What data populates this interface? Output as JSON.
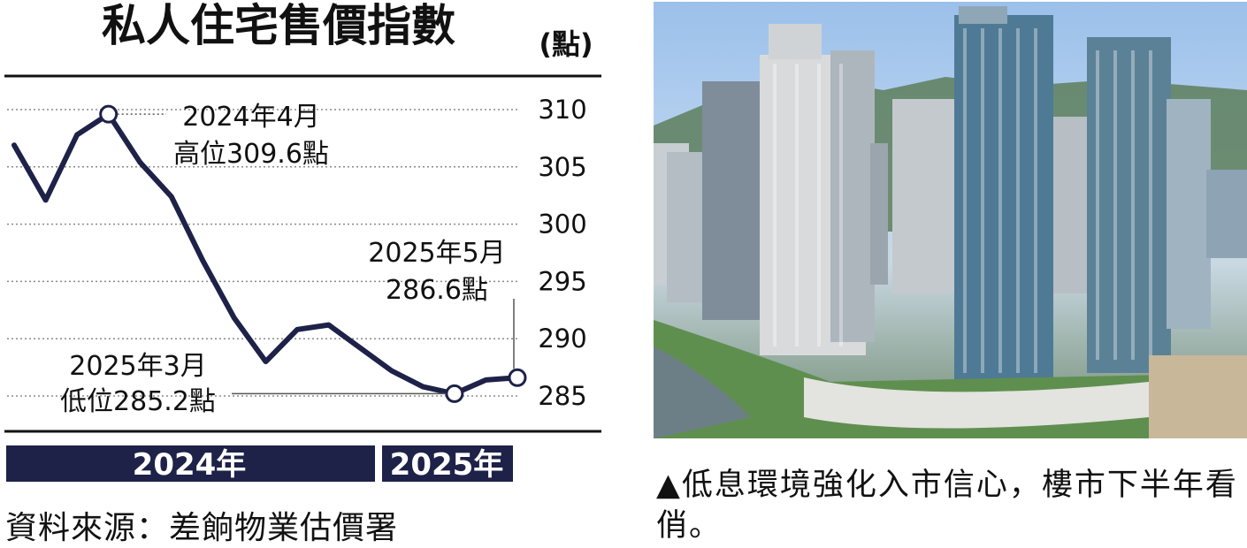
{
  "chart_data": {
    "type": "line",
    "title": "私人住宅售價指數",
    "unit": "(點)",
    "x": [
      "2024-01",
      "2024-02",
      "2024-03",
      "2024-04",
      "2024-05",
      "2024-06",
      "2024-07",
      "2024-08",
      "2024-09",
      "2024-10",
      "2024-11",
      "2024-12",
      "2025-01",
      "2025-02",
      "2025-03",
      "2025-04",
      "2025-05"
    ],
    "series": [
      {
        "values": [
          306.9,
          302.1,
          307.8,
          309.6,
          305.4,
          302.4,
          296.8,
          291.8,
          288.0,
          290.8,
          291.2,
          289.2,
          287.2,
          285.8,
          285.2,
          286.4,
          286.6
        ]
      }
    ],
    "ylim": [
      283,
      312
    ],
    "yticks": [
      310,
      305,
      300,
      295,
      290,
      285
    ],
    "grid": true,
    "year_labels": [
      "2024年",
      "2025年"
    ],
    "annotations": [
      {
        "line1": "2024年4月",
        "line2": "高位309.6點"
      },
      {
        "line1": "2025年5月",
        "line2": "286.6點"
      },
      {
        "line1": "2025年3月",
        "line2": "低位285.2點"
      }
    ],
    "line_color": "#1e2148"
  },
  "source": "資料來源：差餉物業估價署",
  "caption": "▲低息環境強化入市信心，樓市下半年看俏。",
  "photo": {
    "colors": {
      "sky": "#9bc0ea",
      "tower": "#6f8aa0",
      "glass": "#4b6f8a",
      "green": "#5f8f4f",
      "water": "#6d7f86"
    }
  }
}
